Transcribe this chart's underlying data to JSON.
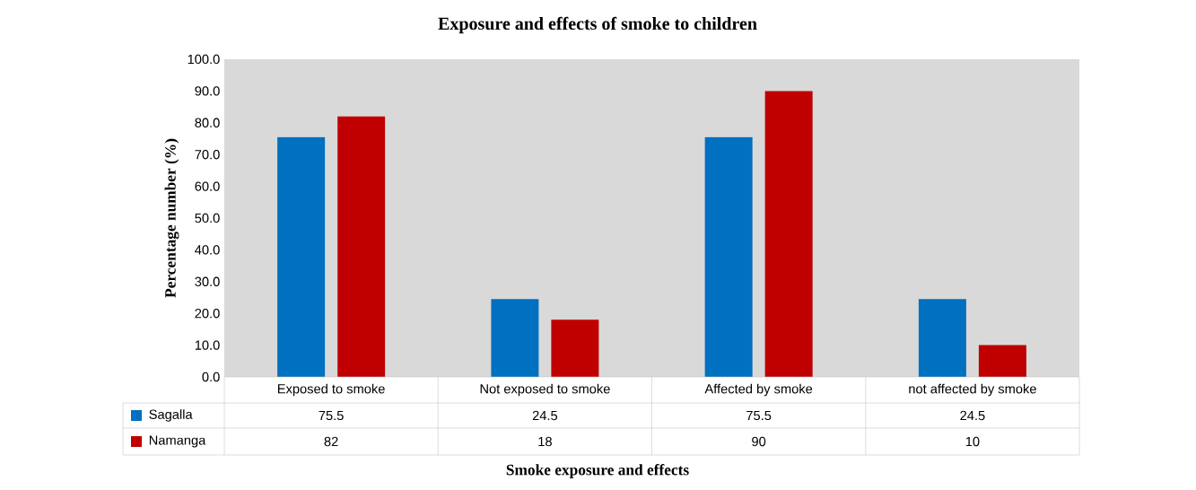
{
  "chart_data": {
    "type": "bar",
    "title": "Exposure and effects of smoke to children",
    "xlabel": "Smoke exposure and effects",
    "ylabel": "Percentage number (%)",
    "categories": [
      "Exposed to smoke",
      "Not exposed to smoke",
      "Affected by smoke",
      "not affected by smoke"
    ],
    "series": [
      {
        "name": "Sagalla",
        "color": "#0070c0",
        "values": [
          75.5,
          24.5,
          75.5,
          24.5
        ]
      },
      {
        "name": "Namanga",
        "color": "#c00000",
        "values": [
          82,
          18,
          90,
          10
        ]
      }
    ],
    "ylim": [
      0,
      100
    ],
    "yticks": [
      {
        "value": 0,
        "label": "0.0"
      },
      {
        "value": 10,
        "label": "10.0"
      },
      {
        "value": 20,
        "label": "20.0"
      },
      {
        "value": 30,
        "label": "30.0"
      },
      {
        "value": 40,
        "label": "40.0"
      },
      {
        "value": 50,
        "label": "50.0"
      },
      {
        "value": 60,
        "label": "60.0"
      },
      {
        "value": 70,
        "label": "70.0"
      },
      {
        "value": 80,
        "label": "80.0"
      },
      {
        "value": 90,
        "label": "90.0"
      },
      {
        "value": 100,
        "label": "100.0"
      }
    ],
    "data_labels": true,
    "legend": "bottom"
  }
}
